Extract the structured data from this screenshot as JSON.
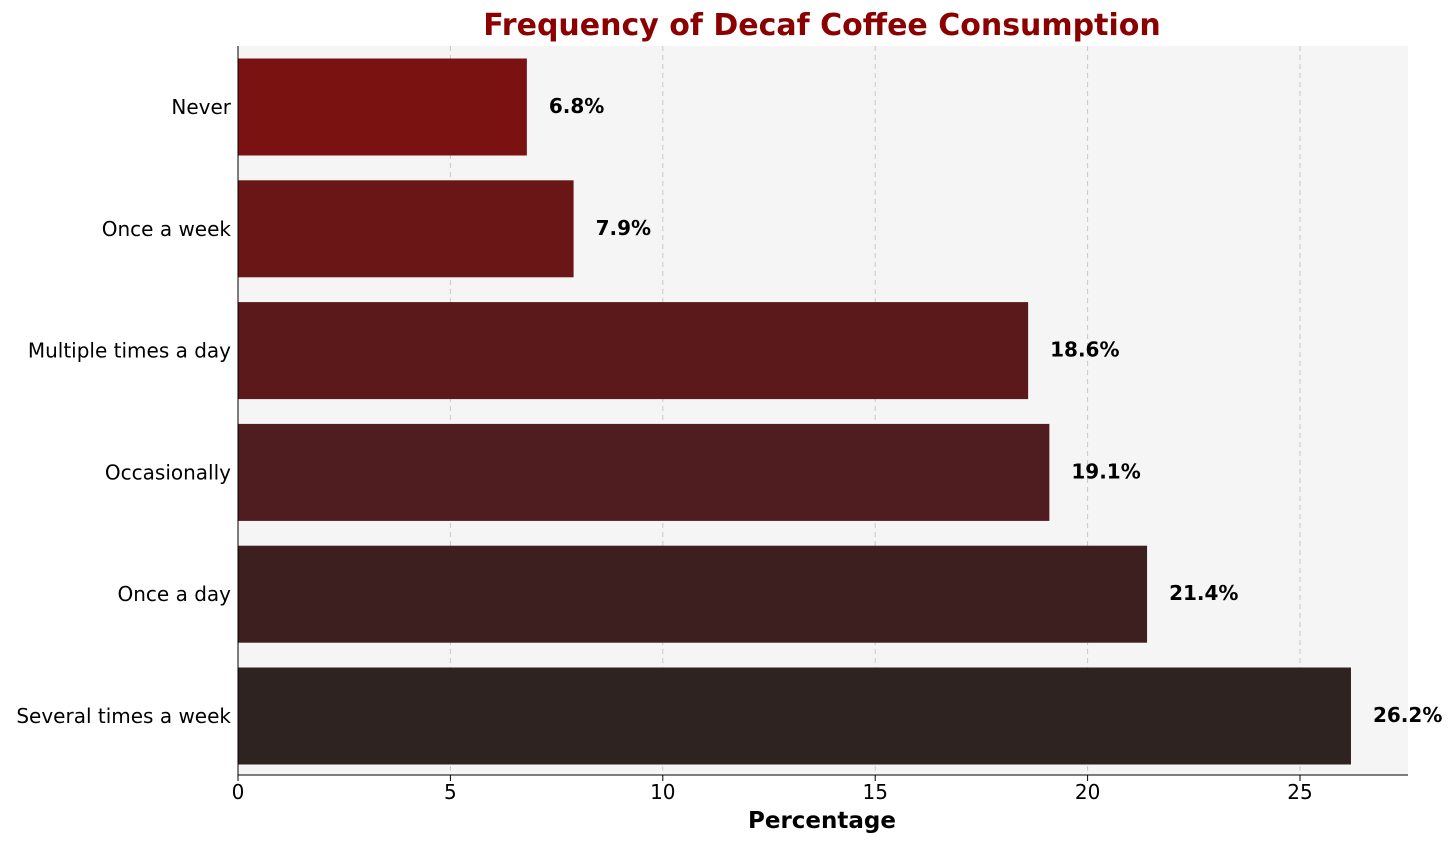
{
  "chart_data": {
    "type": "bar",
    "orientation": "horizontal",
    "title": "Frequency of Decaf Coffee Consumption",
    "xlabel": "Percentage",
    "ylabel": "",
    "categories": [
      "Never",
      "Once a week",
      "Multiple times a day",
      "Occasionally",
      "Once a day",
      "Several times a week"
    ],
    "values": [
      6.8,
      7.9,
      18.6,
      19.1,
      21.4,
      26.2
    ],
    "value_labels": [
      "6.8%",
      "7.9%",
      "18.6%",
      "19.1%",
      "21.4%",
      "26.2%"
    ],
    "bar_colors": [
      "#7a1212",
      "#6a1616",
      "#5c191b",
      "#4f1c1f",
      "#3e1f20",
      "#2f2322"
    ],
    "xlim": [
      0,
      27.5
    ],
    "xticks": [
      0,
      5,
      10,
      15,
      20,
      25
    ],
    "xtick_labels": [
      "0",
      "5",
      "10",
      "15",
      "20",
      "25"
    ],
    "grid": {
      "x": true,
      "y": false,
      "style": "dashed"
    },
    "colors": {
      "title": "#8b0000",
      "plot_background": "#f5f5f5",
      "grid": "#c8c8c8",
      "axis": "#000000"
    }
  }
}
